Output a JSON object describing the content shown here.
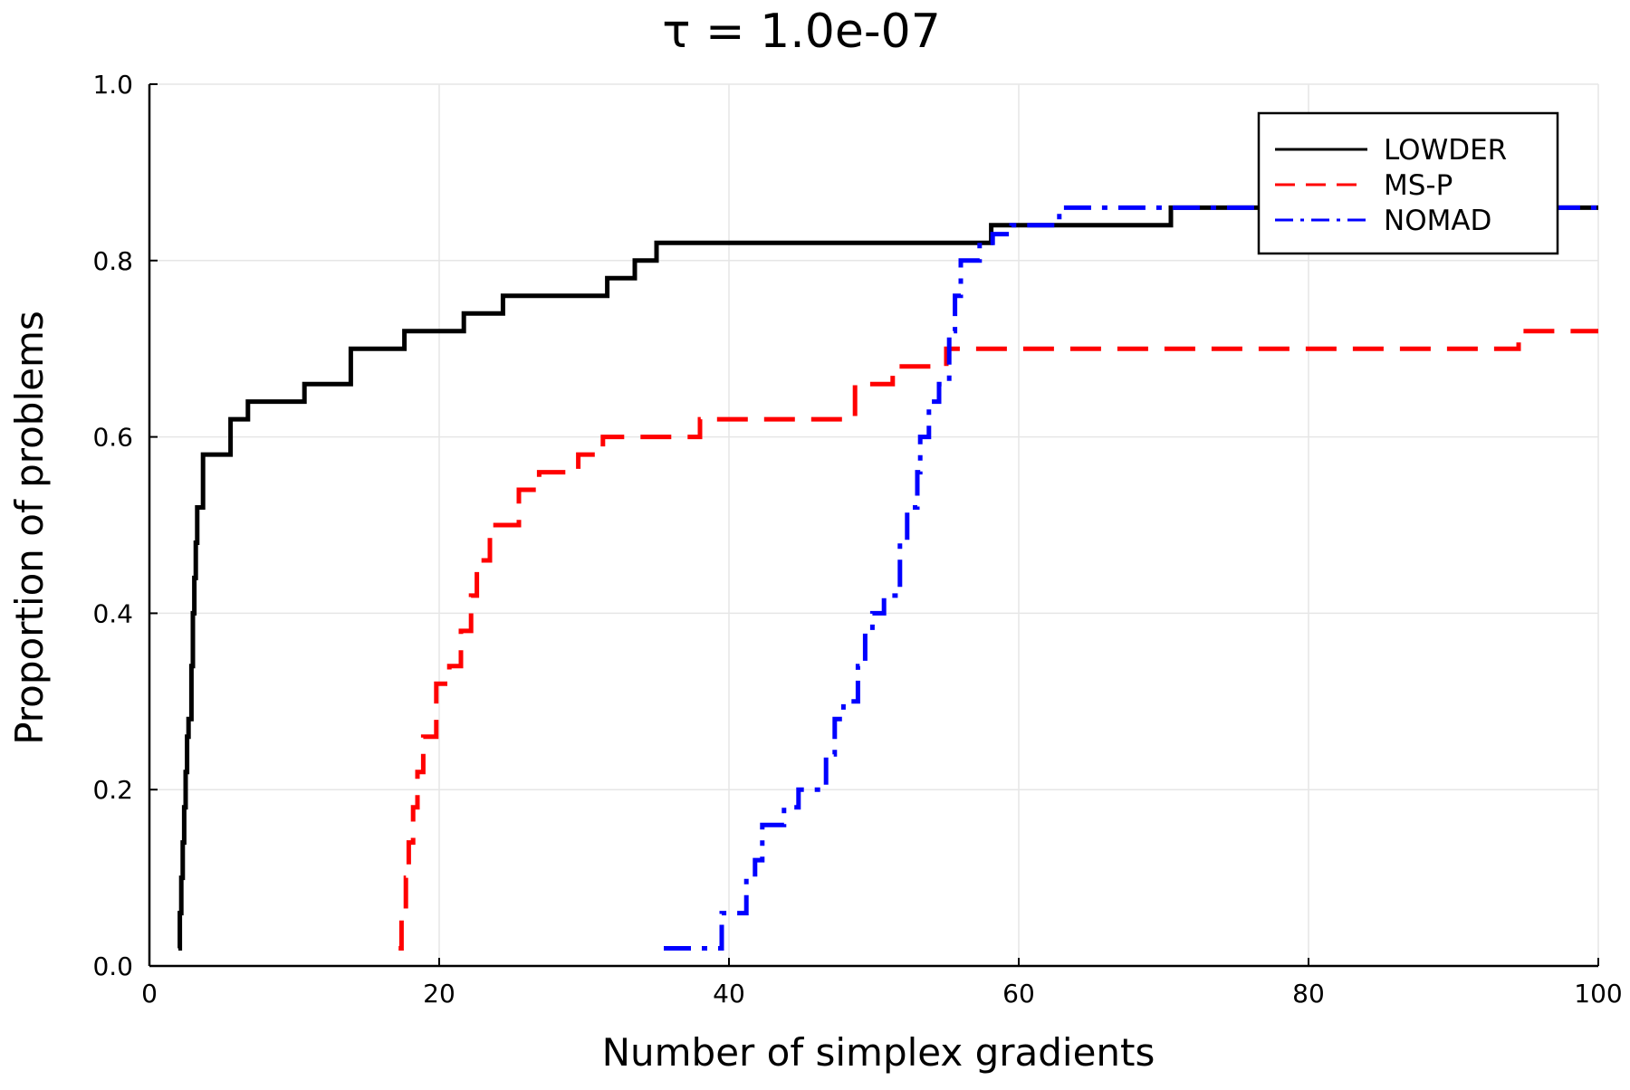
{
  "chart_data": {
    "type": "line",
    "title": "τ = 1.0e-07",
    "xlabel": "Number of simplex gradients",
    "ylabel": "Proportion of problems",
    "xlim": [
      0,
      100
    ],
    "ylim": [
      0,
      1.0
    ],
    "x_ticks": [
      "0",
      "20",
      "40",
      "60",
      "80",
      "100"
    ],
    "y_ticks": [
      "0.0",
      "0.2",
      "0.4",
      "0.6",
      "0.8",
      "1.0"
    ],
    "grid": true,
    "legend_position": "top-right",
    "series": [
      {
        "name": "LOWDER",
        "color": "#000000",
        "style": "solid",
        "x_start": 2.0,
        "steps": [
          [
            2.0,
            0.02
          ],
          [
            2.1,
            0.06
          ],
          [
            2.2,
            0.1
          ],
          [
            2.3,
            0.14
          ],
          [
            2.4,
            0.18
          ],
          [
            2.5,
            0.22
          ],
          [
            2.6,
            0.26
          ],
          [
            2.7,
            0.28
          ],
          [
            2.9,
            0.34
          ],
          [
            3.0,
            0.4
          ],
          [
            3.1,
            0.44
          ],
          [
            3.2,
            0.48
          ],
          [
            3.3,
            0.52
          ],
          [
            3.7,
            0.58
          ],
          [
            5.6,
            0.62
          ],
          [
            6.8,
            0.64
          ],
          [
            10.7,
            0.66
          ],
          [
            13.9,
            0.7
          ],
          [
            17.6,
            0.72
          ],
          [
            21.7,
            0.74
          ],
          [
            24.4,
            0.76
          ],
          [
            31.6,
            0.78
          ],
          [
            33.5,
            0.8
          ],
          [
            35.0,
            0.82
          ],
          [
            58.1,
            0.84
          ],
          [
            70.5,
            0.86
          ]
        ]
      },
      {
        "name": "MS-P",
        "color": "#ff0000",
        "style": "dashed",
        "x_start": 17.2,
        "steps": [
          [
            17.2,
            0.02
          ],
          [
            17.4,
            0.06
          ],
          [
            17.7,
            0.1
          ],
          [
            17.9,
            0.14
          ],
          [
            18.2,
            0.18
          ],
          [
            18.5,
            0.22
          ],
          [
            18.9,
            0.26
          ],
          [
            19.8,
            0.32
          ],
          [
            20.7,
            0.34
          ],
          [
            21.5,
            0.38
          ],
          [
            22.2,
            0.42
          ],
          [
            22.6,
            0.46
          ],
          [
            23.5,
            0.5
          ],
          [
            25.5,
            0.54
          ],
          [
            26.9,
            0.56
          ],
          [
            29.6,
            0.58
          ],
          [
            31.3,
            0.6
          ],
          [
            38.0,
            0.62
          ],
          [
            48.7,
            0.66
          ],
          [
            51.3,
            0.68
          ],
          [
            55.0,
            0.7
          ],
          [
            94.5,
            0.72
          ]
        ]
      },
      {
        "name": "NOMAD",
        "color": "#0000ff",
        "style": "dashdot",
        "x_start": 35.5,
        "steps": [
          [
            35.5,
            0.02
          ],
          [
            39.5,
            0.06
          ],
          [
            41.2,
            0.1
          ],
          [
            41.8,
            0.12
          ],
          [
            42.3,
            0.16
          ],
          [
            43.8,
            0.18
          ],
          [
            44.8,
            0.2
          ],
          [
            46.7,
            0.24
          ],
          [
            47.3,
            0.28
          ],
          [
            47.9,
            0.3
          ],
          [
            48.9,
            0.34
          ],
          [
            49.4,
            0.38
          ],
          [
            49.9,
            0.4
          ],
          [
            50.7,
            0.42
          ],
          [
            51.8,
            0.48
          ],
          [
            52.3,
            0.52
          ],
          [
            53.0,
            0.56
          ],
          [
            53.2,
            0.6
          ],
          [
            53.8,
            0.64
          ],
          [
            54.5,
            0.66
          ],
          [
            55.2,
            0.72
          ],
          [
            55.6,
            0.76
          ],
          [
            56.0,
            0.8
          ],
          [
            57.3,
            0.82
          ],
          [
            58.2,
            0.83
          ],
          [
            59.5,
            0.84
          ],
          [
            62.8,
            0.86
          ]
        ]
      }
    ]
  }
}
